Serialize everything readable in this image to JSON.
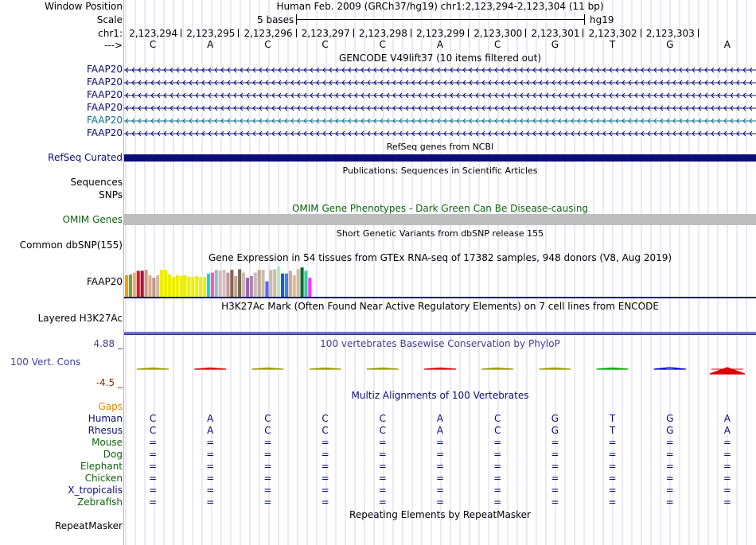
{
  "left_labels": {
    "window_position": "Window Position",
    "scale": "Scale",
    "chr": "chr1:",
    "arrow": "--->",
    "sequences": "Sequences",
    "snps": "SNPs",
    "common_dbsnp": "Common dbSNP(155)",
    "gtex_gene": "FAAP20",
    "layered_h3k27ac": "Layered H3K27Ac",
    "vert_cons": "100 Vert. Cons",
    "cons_max": "4.88 _",
    "cons_min": "-4.5 _",
    "repeatmasker": "RepeatMasker",
    "refseq_curated": "RefSeq Curated",
    "omim_genes": "OMIM Genes"
  },
  "header": {
    "position_text": "Human Feb. 2009 (GRCh37/hg19)   chr1:2,123,294-2,123,304 (11 bp)",
    "scale_text": "5 bases",
    "assembly": "hg19",
    "coordinates": [
      "2,123,294",
      "2,123,295",
      "2,123,296",
      "2,123,297",
      "2,123,298",
      "2,123,299",
      "2,123,300",
      "2,123,301",
      "2,123,302",
      "2,123,303"
    ],
    "bases": [
      "C",
      "A",
      "C",
      "C",
      "C",
      "A",
      "C",
      "G",
      "T",
      "G",
      "A"
    ]
  },
  "gencode": {
    "title": "GENCODE V49lift37 (10 items filtered out)",
    "genes": [
      "FAAP20",
      "FAAP20",
      "FAAP20",
      "FAAP20",
      "FAAP20",
      "FAAP20"
    ],
    "colors": [
      "#0c0c78",
      "#0c0c78",
      "#0c0c78",
      "#0c0c78",
      "#11718f",
      "#0c0c78"
    ]
  },
  "refseq": {
    "title": "RefSeq genes from NCBI",
    "color": "#0c0c78"
  },
  "publications": {
    "title": "Publications: Sequences in Scientific Articles"
  },
  "omim": {
    "title": "OMIM Gene Phenotypes - Dark Green Can Be Disease-causing",
    "color": "#0e630e"
  },
  "dbsnp": {
    "title": "Short Genetic Variants from dbSNP release 155"
  },
  "gtex": {
    "title": "Gene Expression in 54 tissues from GTEx RNA-seq of 17382 samples, 948 donors (V8, Aug 2019)",
    "colors": [
      "#ff9900",
      "#66aa44",
      "#eeaa77",
      "#cc2222",
      "#aa1133",
      "#cc9988",
      "#ddaa88",
      "#bb9988",
      "#ccbbaa",
      "#eeee00",
      "#eeee00",
      "#eeee00",
      "#eeee00",
      "#eeee00",
      "#eeee00",
      "#eeee00",
      "#eeee00",
      "#eeee00",
      "#eeee00",
      "#eeee00",
      "#eeee00",
      "#00dddd",
      "#ff55aa",
      "#99bbcc",
      "#ccbbbb",
      "#ddbbbb",
      "#bb99aa",
      "#886644",
      "#bbaa99",
      "#776655",
      "#ccbbaa",
      "#9966bb",
      "#aa88aa",
      "#ccbbbb",
      "#bbaa99",
      "#ccbbaa",
      "#5566ff",
      "#ccbbaa",
      "#ccbbaa",
      "#aaeebb",
      "#2255dd",
      "#3388ee",
      "#ccaa99",
      "#ddbb99",
      "#ccbb99",
      "#116633",
      "#33cc99",
      "#ff33ff"
    ],
    "values": [
      0.71,
      0.74,
      0.8,
      0.86,
      0.86,
      0.89,
      0.71,
      0.63,
      0.71,
      0.89,
      0.89,
      0.74,
      0.66,
      0.71,
      0.69,
      0.71,
      0.66,
      0.66,
      0.69,
      0.66,
      0.66,
      0.77,
      0.8,
      0.89,
      0.86,
      0.89,
      0.8,
      0.89,
      0.69,
      0.91,
      0.8,
      0.63,
      0.69,
      0.8,
      0.89,
      0.89,
      0.51,
      0.89,
      0.91,
      1.0,
      0.77,
      0.77,
      0.86,
      0.71,
      0.91,
      0.97,
      0.86,
      0.63
    ]
  },
  "h3k27ac": {
    "title": "H3K27Ac Mark (Often Found Near Active Regulatory Elements) on 7 cell lines from ENCODE"
  },
  "phylop": {
    "title": "100 vertebrates Basewise Conservation by PhyloP",
    "range": [
      -4.5,
      4.88
    ],
    "scores": [
      0.2,
      0.6,
      0.2,
      0.15,
      0.1,
      0.5,
      0.3,
      0.15,
      0.4,
      0.9,
      -1.2
    ],
    "colors": [
      "#999900",
      "#dd0000",
      "#999900",
      "#999900",
      "#999900",
      "#dd0000",
      "#999900",
      "#999900",
      "#00aa00",
      "#0000dd",
      "#dd0000"
    ]
  },
  "multiz": {
    "title": "Multiz Alignments of 100 Vertebrates",
    "gaps": "Gaps",
    "species": [
      {
        "name": "Human",
        "color": "#0c0c78",
        "seq": [
          "C",
          "A",
          "C",
          "C",
          "C",
          "A",
          "C",
          "G",
          "T",
          "G",
          "A"
        ]
      },
      {
        "name": "Rhesus",
        "color": "#0c0c78",
        "seq": [
          "C",
          "A",
          "C",
          "C",
          "C",
          "A",
          "C",
          "G",
          "T",
          "G",
          "A"
        ]
      },
      {
        "name": "Mouse",
        "color": "#0e630e",
        "seq": [
          "=",
          "=",
          "=",
          "=",
          "=",
          "=",
          "=",
          "=",
          "=",
          "=",
          "="
        ]
      },
      {
        "name": "Dog",
        "color": "#0e630e",
        "seq": [
          "=",
          "=",
          "=",
          "=",
          "=",
          "=",
          "=",
          "=",
          "=",
          "=",
          "="
        ]
      },
      {
        "name": "Elephant",
        "color": "#0e630e",
        "seq": [
          "=",
          "=",
          "=",
          "=",
          "=",
          "=",
          "=",
          "=",
          "=",
          "=",
          "="
        ]
      },
      {
        "name": "Chicken",
        "color": "#0e630e",
        "seq": [
          "=",
          "=",
          "=",
          "=",
          "=",
          "=",
          "=",
          "=",
          "=",
          "=",
          "="
        ]
      },
      {
        "name": "X_tropicalis",
        "color": "#0c0c78",
        "seq": [
          "=",
          "=",
          "=",
          "=",
          "=",
          "=",
          "=",
          "=",
          "=",
          "=",
          "="
        ]
      },
      {
        "name": "Zebrafish",
        "color": "#0e630e",
        "seq": [
          "=",
          "=",
          "=",
          "=",
          "=",
          "=",
          "=",
          "=",
          "=",
          "=",
          "="
        ]
      }
    ]
  },
  "repeatmasker": {
    "title": "Repeating Elements by RepeatMasker"
  },
  "colors": {
    "gencode": "#0c0c78",
    "gencode_alt": "#11718f",
    "phylop_label": "#3e3e9a",
    "cons_min": "#8b3000",
    "gaps": "#e08a00",
    "omim": "#0e630e",
    "guide": "#c4c4e4",
    "left_border": "#ff9999",
    "gray_bar": "#bebebe"
  }
}
